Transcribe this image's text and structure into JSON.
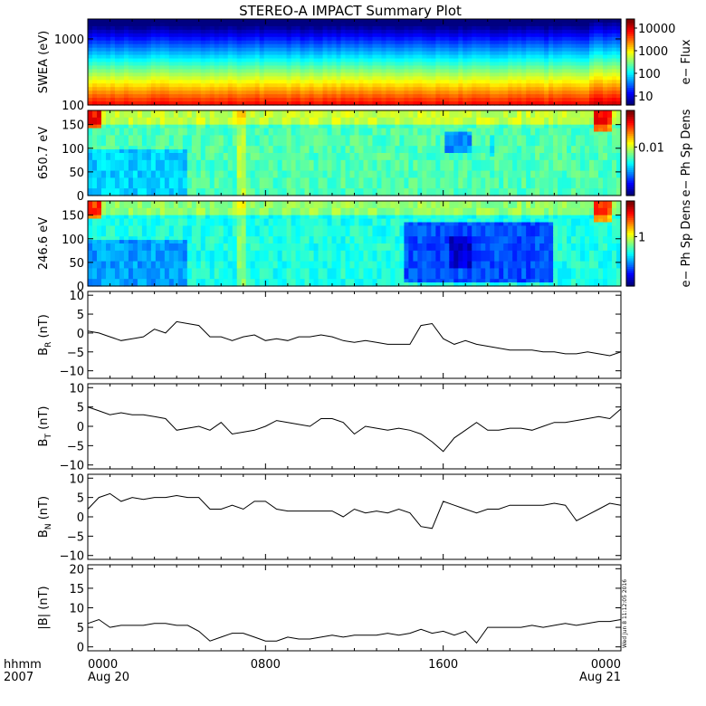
{
  "chart_data": {
    "title": "STEREO-A IMPACT Summary Plot",
    "type": "line",
    "time_axis": {
      "corner_labels": [
        "hhmm",
        "2007"
      ],
      "ticks": [
        {
          "time": "0000",
          "date": "Aug 20",
          "hour": 0
        },
        {
          "time": "0800",
          "date": "",
          "hour": 8
        },
        {
          "time": "1600",
          "date": "",
          "hour": 16
        },
        {
          "time": "0000",
          "date": "Aug 21",
          "hour": 24
        }
      ],
      "xlim": [
        0,
        24
      ]
    },
    "stamp": "Wed Jun  8 11:12:05 2016",
    "panels": [
      {
        "id": "swea",
        "type": "heatmap",
        "ylabel": "SWEA (eV)",
        "yscale": "log",
        "ylim": [
          100,
          2000
        ],
        "yticks": [
          {
            "value": 100,
            "label": "100"
          },
          {
            "value": 1000,
            "label": "1000"
          }
        ],
        "colorbar": {
          "label": "e− Flux",
          "ticks": [
            "10000",
            "1000",
            "100",
            "10"
          ]
        }
      },
      {
        "id": "pad650",
        "type": "heatmap",
        "ylabel": "650.7 eV",
        "ylim": [
          0,
          180
        ],
        "yticks": [
          {
            "value": 0,
            "label": "0"
          },
          {
            "value": 50,
            "label": "50"
          },
          {
            "value": 100,
            "label": "100"
          },
          {
            "value": 150,
            "label": "150"
          }
        ],
        "colorbar": {
          "label": "e− Ph Sp Dens",
          "ticks": [
            "0.01"
          ]
        }
      },
      {
        "id": "pad246",
        "type": "heatmap",
        "ylabel": "246.6 eV",
        "ylim": [
          0,
          180
        ],
        "yticks": [
          {
            "value": 0,
            "label": "0"
          },
          {
            "value": 50,
            "label": "50"
          },
          {
            "value": 100,
            "label": "100"
          },
          {
            "value": 150,
            "label": "150"
          }
        ],
        "colorbar": {
          "label": "e− Ph Sp Dens",
          "ticks": [
            "1"
          ]
        }
      },
      {
        "id": "br",
        "type": "line",
        "ylabel": "B",
        "ysub": "R",
        "yunit": "(nT)",
        "ylim": [
          -12,
          11
        ],
        "yticks": [
          {
            "value": 10,
            "label": "10"
          },
          {
            "value": 5,
            "label": "5"
          },
          {
            "value": 0,
            "label": "0"
          },
          {
            "value": -5,
            "label": "−5"
          },
          {
            "value": -10,
            "label": "−10"
          }
        ],
        "x": [
          0,
          0.5,
          1,
          1.5,
          2,
          2.5,
          3,
          3.5,
          4,
          4.5,
          5,
          5.5,
          6,
          6.5,
          7,
          7.5,
          8,
          8.5,
          9,
          9.5,
          10,
          10.5,
          11,
          11.5,
          12,
          12.5,
          13,
          13.5,
          14,
          14.5,
          15,
          15.5,
          16,
          16.5,
          17,
          17.5,
          18,
          18.5,
          19,
          19.5,
          20,
          20.5,
          21,
          21.5,
          22,
          22.5,
          23,
          23.5,
          24
        ],
        "values": [
          0.5,
          0,
          -1,
          -2,
          -1.5,
          -1,
          1,
          0,
          3,
          2.5,
          2,
          -1,
          -1,
          -2,
          -1,
          -0.5,
          -2,
          -1.5,
          -2,
          -1,
          -1,
          -0.5,
          -1,
          -2,
          -2.5,
          -2,
          -2.5,
          -3,
          -3,
          -3,
          2,
          2.5,
          -1.5,
          -3,
          -2,
          -3,
          -3.5,
          -4,
          -4.5,
          -4.5,
          -4.5,
          -5,
          -5,
          -5.5,
          -5.5,
          -5,
          -5.5,
          -6,
          -5
        ]
      },
      {
        "id": "bt",
        "type": "line",
        "ylabel": "B",
        "ysub": "T",
        "yunit": "(nT)",
        "ylim": [
          -11,
          11
        ],
        "yticks": [
          {
            "value": 10,
            "label": "10"
          },
          {
            "value": 5,
            "label": "5"
          },
          {
            "value": 0,
            "label": "0"
          },
          {
            "value": -5,
            "label": "−5"
          },
          {
            "value": -10,
            "label": "−10"
          }
        ],
        "x": [
          0,
          0.5,
          1,
          1.5,
          2,
          2.5,
          3,
          3.5,
          4,
          4.5,
          5,
          5.5,
          6,
          6.5,
          7,
          7.5,
          8,
          8.5,
          9,
          9.5,
          10,
          10.5,
          11,
          11.5,
          12,
          12.5,
          13,
          13.5,
          14,
          14.5,
          15,
          15.5,
          16,
          16.5,
          17,
          17.5,
          18,
          18.5,
          19,
          19.5,
          20,
          20.5,
          21,
          21.5,
          22,
          22.5,
          23,
          23.5,
          24
        ],
        "values": [
          5,
          4,
          3,
          3.5,
          3,
          3,
          2.5,
          2,
          -1,
          -0.5,
          0,
          -1,
          1,
          -2,
          -1.5,
          -1,
          0,
          1.5,
          1,
          0.5,
          0,
          2,
          2,
          1,
          -2,
          0,
          -0.5,
          -1,
          -0.5,
          -1,
          -2,
          -4,
          -6.5,
          -3,
          -1,
          1,
          -1,
          -1,
          -0.5,
          -0.5,
          -1,
          0,
          1,
          1,
          1.5,
          2,
          2.5,
          2,
          4.5
        ]
      },
      {
        "id": "bn",
        "type": "line",
        "ylabel": "B",
        "ysub": "N",
        "yunit": "(nT)",
        "ylim": [
          -11,
          11
        ],
        "yticks": [
          {
            "value": 10,
            "label": "10"
          },
          {
            "value": 5,
            "label": "5"
          },
          {
            "value": 0,
            "label": "0"
          },
          {
            "value": -5,
            "label": "−5"
          },
          {
            "value": -10,
            "label": "−10"
          }
        ],
        "x": [
          0,
          0.5,
          1,
          1.5,
          2,
          2.5,
          3,
          3.5,
          4,
          4.5,
          5,
          5.5,
          6,
          6.5,
          7,
          7.5,
          8,
          8.5,
          9,
          9.5,
          10,
          10.5,
          11,
          11.5,
          12,
          12.5,
          13,
          13.5,
          14,
          14.5,
          15,
          15.5,
          16,
          16.5,
          17,
          17.5,
          18,
          18.5,
          19,
          19.5,
          20,
          20.5,
          21,
          21.5,
          22,
          22.5,
          23,
          23.5,
          24
        ],
        "values": [
          2,
          5,
          6,
          4,
          5,
          4.5,
          5,
          5,
          5.5,
          5,
          5,
          2,
          2,
          3,
          2,
          4,
          4,
          2,
          1.5,
          1.5,
          1.5,
          1.5,
          1.5,
          0,
          2,
          1,
          1.5,
          1,
          2,
          1,
          -2.5,
          -3,
          4,
          3,
          2,
          1,
          2,
          2,
          3,
          3,
          3,
          3,
          3.5,
          3,
          -1,
          0.5,
          2,
          3.5,
          3
        ]
      },
      {
        "id": "bmag",
        "type": "line",
        "ylabel": "|B|",
        "ysub": "",
        "yunit": "(nT)",
        "ylim": [
          -1,
          21
        ],
        "yticks": [
          {
            "value": 20,
            "label": "20"
          },
          {
            "value": 15,
            "label": "15"
          },
          {
            "value": 10,
            "label": "10"
          },
          {
            "value": 5,
            "label": "5"
          },
          {
            "value": 0,
            "label": "0"
          }
        ],
        "x": [
          0,
          0.5,
          1,
          1.5,
          2,
          2.5,
          3,
          3.5,
          4,
          4.5,
          5,
          5.5,
          6,
          6.5,
          7,
          7.5,
          8,
          8.5,
          9,
          9.5,
          10,
          10.5,
          11,
          11.5,
          12,
          12.5,
          13,
          13.5,
          14,
          14.5,
          15,
          15.5,
          16,
          16.5,
          17,
          17.5,
          18,
          18.5,
          19,
          19.5,
          20,
          20.5,
          21,
          21.5,
          22,
          22.5,
          23,
          23.5,
          24
        ],
        "values": [
          6,
          7,
          5,
          5.5,
          5.5,
          5.5,
          6,
          6,
          5.5,
          5.5,
          4,
          1.5,
          2.5,
          3.5,
          3.5,
          2.5,
          1.5,
          1.5,
          2.5,
          2,
          2,
          2.5,
          3,
          2.5,
          3,
          3,
          3,
          3.5,
          3,
          3.5,
          4.5,
          3.5,
          4,
          3,
          4,
          1,
          5,
          5,
          5,
          5,
          5.5,
          5,
          5.5,
          6,
          5.5,
          6,
          6.5,
          6.5,
          7
        ]
      }
    ]
  }
}
